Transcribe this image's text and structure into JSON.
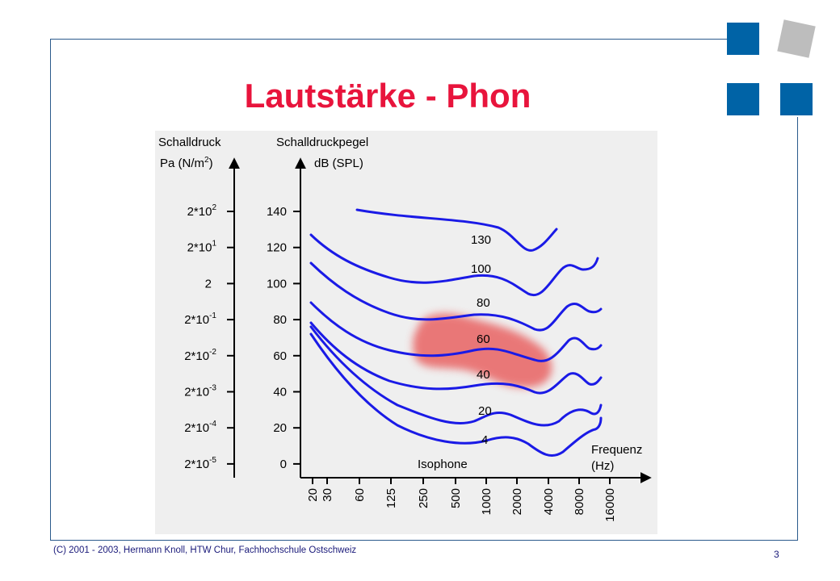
{
  "slide": {
    "title": "Lautstärke - Phon",
    "footer": "(C) 2001 - 2003, Hermann Knoll, HTW Chur, Fachhochschule Ostschweiz",
    "page_number": "3",
    "colors": {
      "title": "#e8143c",
      "accent_blue": "#0063a6",
      "accent_gray": "#bdbdbd",
      "curve": "#1a1ae6",
      "highlight": "#e85a5a"
    }
  },
  "figure": {
    "left_axis": {
      "title_line1": "Schalldruck",
      "title_line2_base": "Pa (N/m",
      "title_line2_sup": "2",
      "title_line2_end": ")",
      "ticks": [
        {
          "base": "2*10",
          "exp": "2"
        },
        {
          "base": "2*10",
          "exp": "1"
        },
        {
          "base": "2",
          "exp": ""
        },
        {
          "base": "2*10",
          "exp": "-1"
        },
        {
          "base": "2*10",
          "exp": "-2"
        },
        {
          "base": "2*10",
          "exp": "-3"
        },
        {
          "base": "2*10",
          "exp": "-4"
        },
        {
          "base": "2*10",
          "exp": "-5"
        }
      ]
    },
    "right_axis": {
      "title_line1": "Schalldruckpegel",
      "title_line2": "dB (SPL)",
      "ticks": [
        "140",
        "120",
        "100",
        "80",
        "60",
        "40",
        "20",
        "0"
      ]
    },
    "x_axis": {
      "label_line1": "Frequenz",
      "label_line2": "(Hz)",
      "ticks": [
        "20",
        "30",
        "60",
        "125",
        "250",
        "500",
        "1000",
        "2000",
        "4000",
        "8000",
        "16000"
      ]
    },
    "curve_label": "Isophone",
    "phon_labels": [
      "130",
      "100",
      "80",
      "60",
      "40",
      "20",
      "4"
    ]
  }
}
